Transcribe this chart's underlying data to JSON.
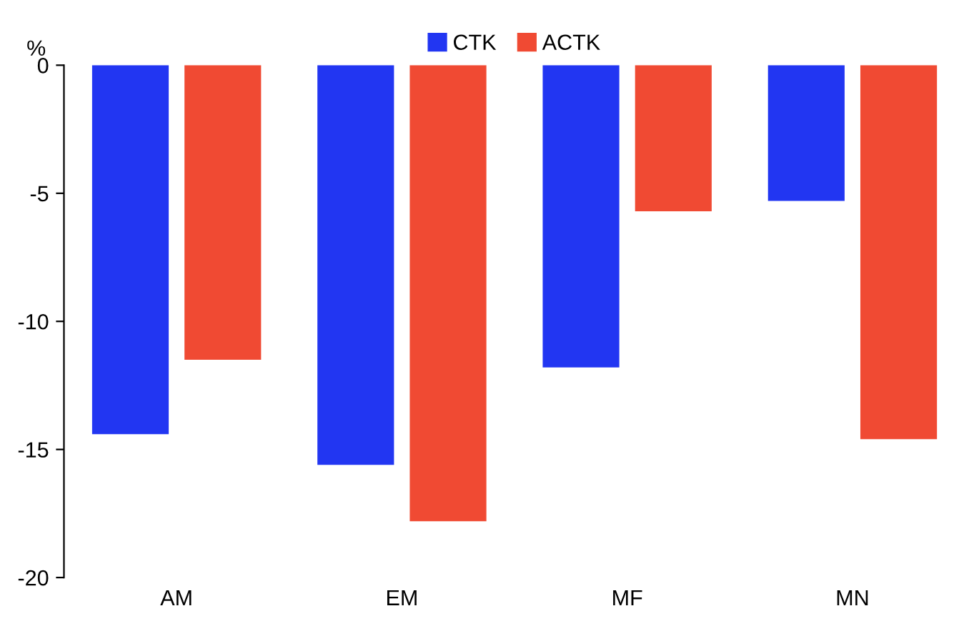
{
  "chart_data": {
    "type": "bar",
    "ylabel": "%",
    "categories": [
      "AM",
      "EM",
      "MF",
      "MN"
    ],
    "series": [
      {
        "name": "CTK",
        "color": "#2236f2",
        "values": [
          -14.4,
          -15.6,
          -11.8,
          -5.3
        ]
      },
      {
        "name": "ACTK",
        "color": "#f04a33",
        "values": [
          -11.5,
          -17.8,
          -5.7,
          -14.6
        ]
      }
    ],
    "ylim": [
      -20,
      0
    ],
    "yticks": [
      0,
      -5,
      -10,
      -15,
      -20
    ],
    "grid": false,
    "legend": "top"
  }
}
